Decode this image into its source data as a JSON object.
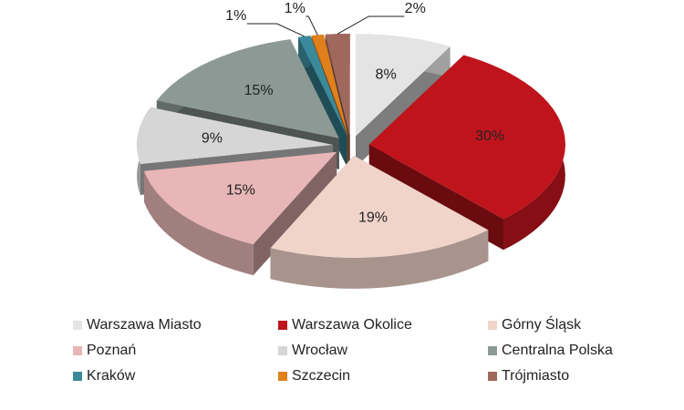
{
  "chart_data": {
    "type": "pie",
    "categories": [
      "Warszawa Miasto",
      "Warszawa Okolice",
      "Górny Śląsk",
      "Poznań",
      "Wrocław",
      "Centralna Polska",
      "Kraków",
      "Szczecin",
      "Trójmiasto"
    ],
    "values": [
      8,
      30,
      19,
      15,
      9,
      15,
      1,
      1,
      2
    ],
    "value_labels": [
      "8%",
      "30%",
      "19%",
      "15%",
      "9%",
      "15%",
      "1%",
      "1%",
      "2%"
    ],
    "colors": [
      "#e4e4e4",
      "#c0141c",
      "#f0d4ca",
      "#e8b6b6",
      "#d6d6d6",
      "#8c9995",
      "#3a8a9c",
      "#e0801c",
      "#a0685c"
    ],
    "legend": "bottom"
  }
}
